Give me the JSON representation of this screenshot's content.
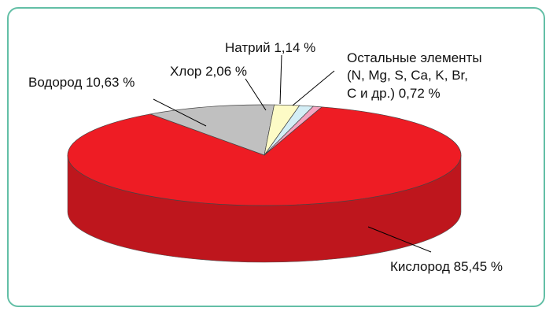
{
  "chart_data": {
    "type": "pie",
    "variant": "3d",
    "slices": [
      {
        "name": "Кислород",
        "value": 85.45,
        "label": "Кислород 85,45 %",
        "color": "#ee1c24",
        "side_color": "#be161d"
      },
      {
        "name": "Водород",
        "value": 10.63,
        "label": "Водород 10,63 %",
        "color": "#c0c0c0",
        "side_color": "#8f8f8f"
      },
      {
        "name": "Хлор",
        "value": 2.06,
        "label": "Хлор 2,06 %",
        "color": "#fdfbc6",
        "side_color": "#d8d59a"
      },
      {
        "name": "Натрий",
        "value": 1.14,
        "label": "Натрий 1,14 %",
        "color": "#d4eef6",
        "side_color": "#a9cbd6"
      },
      {
        "name": "Остальные элементы",
        "value": 0.72,
        "label_lines": [
          "Остальные элементы",
          "(N, Mg, S, Ca, K, Br,",
          "C и др.) 0,72 %"
        ],
        "color": "#f5a3c0",
        "side_color": "#d07d9a"
      }
    ],
    "frame_color": "#63bfa6"
  }
}
